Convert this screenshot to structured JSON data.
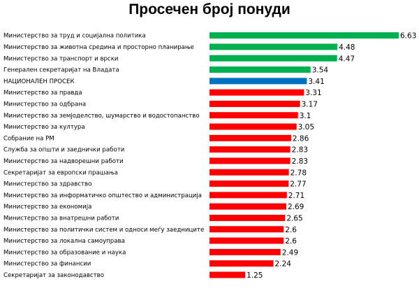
{
  "chart_data": {
    "type": "bar",
    "orientation": "horizontal",
    "title": "Просечен број понуди",
    "xlabel": "",
    "ylabel": "",
    "xlim": [
      0,
      6.63
    ],
    "grid": false,
    "legend": "none",
    "categories": [
      "Министерство за труд и социјална политика",
      "Министерство за животна средина и просторно планирање",
      "Министерство за транспорт и врски",
      "Генерален секретаријат на Владата",
      "НАЦИОНАЛЕН ПРОСЕК",
      "Министерство за правда",
      "Министерство за одбрана",
      "Министерство за земјоделство, шумарство и водостопанство",
      "Министерство за култура",
      "Собрание на РМ",
      "Служба за општи и заеднички работи",
      "Министерство за надворешни работи",
      "Секретаријат за европски прашања",
      "Министерство за здравство",
      "Министерство за информатичко општество и администрација",
      "Министерство за економија",
      "Министерство за внатрешни работи",
      "Министерство за политички систем и односи меѓу заедниците",
      "Министерство за локална самоуправа",
      "Министерство за образование и наука",
      "Министерство за финансии",
      "Секретаријат за законодавство"
    ],
    "values": [
      6.63,
      4.48,
      4.47,
      3.54,
      3.41,
      3.31,
      3.17,
      3.1,
      3.05,
      2.86,
      2.83,
      2.83,
      2.78,
      2.77,
      2.71,
      2.69,
      2.65,
      2.6,
      2.6,
      2.49,
      2.24,
      1.25
    ],
    "value_labels": [
      "6.63",
      "4.48",
      "4.47",
      "3.54",
      "3.41",
      "3.31",
      "3.17",
      "3.1",
      "3.05",
      "2.86",
      "2.83",
      "2.83",
      "2.78",
      "2.77",
      "2.71",
      "2.69",
      "2.65",
      "2.6",
      "2.6",
      "2.49",
      "2.24",
      "1.25"
    ],
    "bar_colors": [
      "#00b050",
      "#00b050",
      "#00b050",
      "#00b050",
      "#0070c0",
      "#ff0000",
      "#ff0000",
      "#ff0000",
      "#ff0000",
      "#ff0000",
      "#ff0000",
      "#ff0000",
      "#ff0000",
      "#ff0000",
      "#ff0000",
      "#ff0000",
      "#ff0000",
      "#ff0000",
      "#ff0000",
      "#ff0000",
      "#ff0000",
      "#ff0000"
    ]
  }
}
